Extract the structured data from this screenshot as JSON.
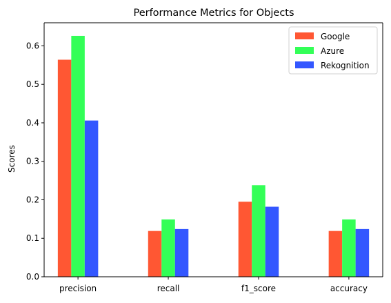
{
  "chart_data": {
    "type": "bar",
    "title": "Performance Metrics for Objects",
    "xlabel": "",
    "ylabel": "Scores",
    "categories": [
      "precision",
      "recall",
      "f1_score",
      "accuracy"
    ],
    "series": [
      {
        "name": "Google",
        "color": "#ff5733",
        "values": [
          0.564,
          0.119,
          0.195,
          0.119
        ]
      },
      {
        "name": "Azure",
        "color": "#33ff57",
        "values": [
          0.626,
          0.149,
          0.238,
          0.149
        ]
      },
      {
        "name": "Rekognition",
        "color": "#3357ff",
        "values": [
          0.406,
          0.124,
          0.182,
          0.124
        ]
      }
    ],
    "ylim": [
      0,
      0.66
    ],
    "yticks": [
      0.0,
      0.1,
      0.2,
      0.3,
      0.4,
      0.5,
      0.6
    ],
    "ytick_labels": [
      "0.0",
      "0.1",
      "0.2",
      "0.3",
      "0.4",
      "0.5",
      "0.6"
    ],
    "grid": false,
    "legend_position": "top-right"
  }
}
